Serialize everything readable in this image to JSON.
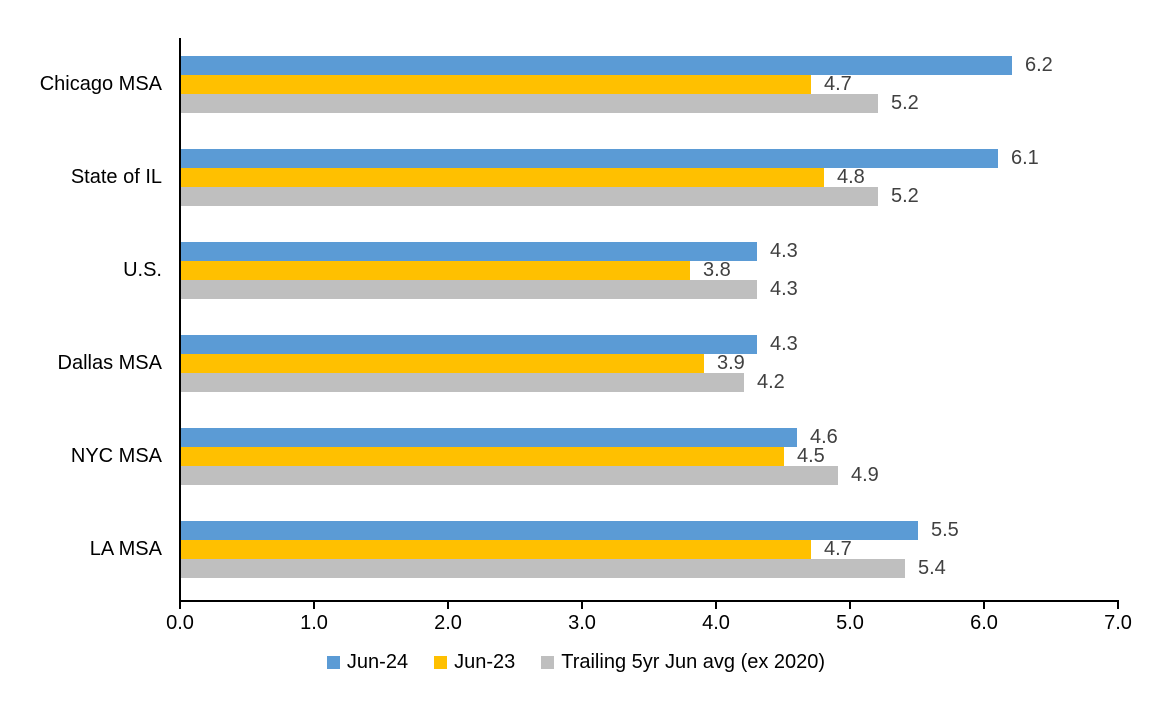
{
  "chart_data": {
    "type": "bar",
    "orientation": "horizontal",
    "title": "",
    "xlabel": "",
    "ylabel": "",
    "categories": [
      "Chicago MSA",
      "State of IL",
      "U.S.",
      "Dallas MSA",
      "NYC MSA",
      "LA MSA"
    ],
    "series": [
      {
        "name": "Jun-24",
        "color": "#5B9BD5",
        "values": [
          6.2,
          6.1,
          4.3,
          4.3,
          4.6,
          5.5
        ]
      },
      {
        "name": "Jun-23",
        "color": "#FFC000",
        "values": [
          4.7,
          4.8,
          3.8,
          3.9,
          4.5,
          4.7
        ]
      },
      {
        "name": "Trailing 5yr Jun avg (ex 2020)",
        "color": "#BFBFBF",
        "values": [
          5.2,
          5.2,
          4.3,
          4.2,
          4.9,
          5.4
        ]
      }
    ],
    "xlim": [
      0.0,
      7.0
    ],
    "x_tick_step": 1.0,
    "x_tick_labels": [
      "0.0",
      "1.0",
      "2.0",
      "3.0",
      "4.0",
      "5.0",
      "6.0",
      "7.0"
    ],
    "value_labels_shown": true,
    "value_label_decimals": 1,
    "grid": false,
    "legend_position": "bottom"
  },
  "colors": {
    "background": "#FFFFFF",
    "axis": "#000000",
    "category_label": "#000000",
    "tick_label": "#000000",
    "value_label": "#404040"
  }
}
